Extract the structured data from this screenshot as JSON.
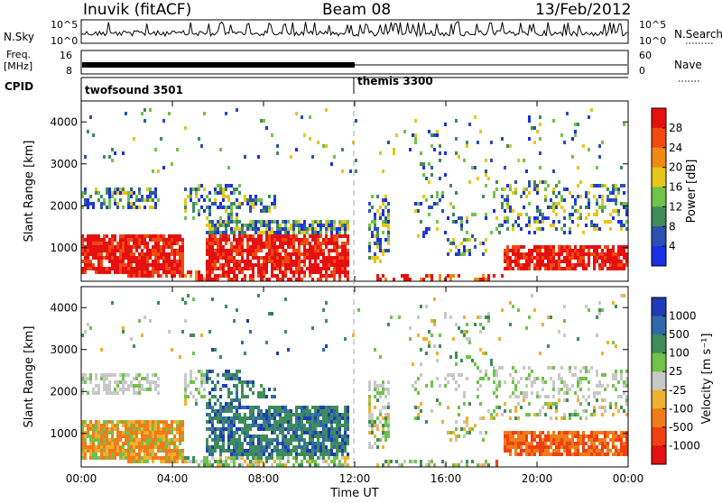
{
  "header": {
    "station": "Inuvik (fitACF)",
    "beam": "Beam 08",
    "date": "13/Feb/2012"
  },
  "left_labels": {
    "nsky": "N.Sky",
    "freq_line1": "Freq.",
    "freq_line2": "[MHz]",
    "cpid": "CPID",
    "nsky_ticks": [
      "10^5",
      "10^0"
    ],
    "freq_ticks": [
      "16",
      "8"
    ]
  },
  "right_labels": {
    "nsearch": "N.Search",
    "nave": "Nave",
    "nsearch_ticks": [
      "10^5",
      "10^0"
    ],
    "nave_ticks": [
      "60",
      "0"
    ]
  },
  "cpid_segments": [
    {
      "name": "twofsound 3501",
      "start_hour": 0,
      "end_hour": 12
    },
    {
      "name": "themis 3300",
      "start_hour": 12,
      "end_hour": 24
    }
  ],
  "chart_data": [
    {
      "type": "heatmap",
      "name": "power",
      "ylabel": "Slant Range [km]",
      "ylim": [
        200,
        4500
      ],
      "yticks": [
        "1000",
        "2000",
        "3000",
        "4000"
      ],
      "colorbar_label": "Power [dB]",
      "colorbar_ticks": [
        "4",
        "8",
        "12",
        "16",
        "20",
        "24",
        "28"
      ],
      "colors": [
        "#1a2ee6",
        "#2a50b0",
        "#3f8c5a",
        "#6fc24a",
        "#e6c619",
        "#f08a12",
        "#f04a10",
        "#e61010"
      ]
    },
    {
      "type": "heatmap",
      "name": "velocity",
      "ylabel": "Slant Range [km]",
      "ylim": [
        200,
        4500
      ],
      "yticks": [
        "1000",
        "2000",
        "3000",
        "4000"
      ],
      "colorbar_label": "Velocity [m s⁻¹]",
      "colorbar_ticks": [
        "1000",
        "500",
        "100",
        "25",
        "-25",
        "-100",
        "-500",
        "-1000"
      ],
      "colors": [
        "#1e3cb4",
        "#2e6aa8",
        "#3f8c5a",
        "#6fc24a",
        "#c8c8c8",
        "#f0b030",
        "#f07c18",
        "#f04010",
        "#e61010"
      ]
    }
  ],
  "x_axis": {
    "label": "Time UT",
    "xlim": [
      0,
      24
    ],
    "ticks": [
      "00:00",
      "04:00",
      "08:00",
      "12:00",
      "16:00",
      "20:00",
      "00:00"
    ]
  }
}
